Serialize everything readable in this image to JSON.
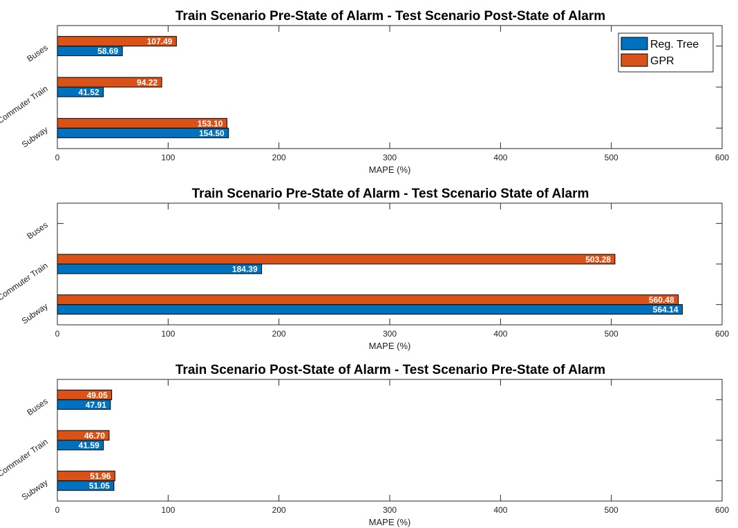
{
  "colors": {
    "reg_tree": "#0072BD",
    "gpr": "#D95319"
  },
  "legend": {
    "items": [
      "Reg. Tree",
      "GPR"
    ],
    "placement": "top-right of first panel"
  },
  "chart_data": [
    {
      "type": "bar",
      "orientation": "horizontal",
      "title": "Train Scenario Pre-State of Alarm - Test Scenario Post-State of Alarm",
      "xlabel": "MAPE (%)",
      "ylabel": "",
      "xlim": [
        0,
        600
      ],
      "xticks": [
        0,
        100,
        200,
        300,
        400,
        500,
        600
      ],
      "categories": [
        "Subway",
        "Commuter Train",
        "Buses"
      ],
      "series": [
        {
          "name": "Reg. Tree",
          "values": [
            154.5,
            41.52,
            58.69
          ],
          "labels": [
            "154.50",
            "41.52",
            "58.69"
          ]
        },
        {
          "name": "GPR",
          "values": [
            153.1,
            94.22,
            107.49
          ],
          "labels": [
            "153.10",
            "94.22",
            "107.49"
          ]
        }
      ]
    },
    {
      "type": "bar",
      "orientation": "horizontal",
      "title": "Train Scenario Pre-State of Alarm - Test Scenario State of Alarm",
      "xlabel": "MAPE (%)",
      "ylabel": "",
      "xlim": [
        0,
        600
      ],
      "xticks": [
        0,
        100,
        200,
        300,
        400,
        500,
        600
      ],
      "categories": [
        "Subway",
        "Commuter Train",
        "Buses"
      ],
      "series": [
        {
          "name": "Reg. Tree",
          "values": [
            564.14,
            184.39,
            null
          ],
          "labels": [
            "564.14",
            "184.39",
            ""
          ]
        },
        {
          "name": "GPR",
          "values": [
            560.48,
            503.28,
            null
          ],
          "labels": [
            "560.48",
            "503.28",
            ""
          ]
        }
      ]
    },
    {
      "type": "bar",
      "orientation": "horizontal",
      "title": "Train Scenario Post-State of Alarm - Test Scenario Pre-State of Alarm",
      "xlabel": "MAPE (%)",
      "ylabel": "",
      "xlim": [
        0,
        600
      ],
      "xticks": [
        0,
        100,
        200,
        300,
        400,
        500,
        600
      ],
      "categories": [
        "Subway",
        "Commuter Train",
        "Buses"
      ],
      "series": [
        {
          "name": "Reg. Tree",
          "values": [
            51.05,
            41.59,
            47.91
          ],
          "labels": [
            "51.05",
            "41.59",
            "47.91"
          ]
        },
        {
          "name": "GPR",
          "values": [
            51.96,
            46.7,
            49.05
          ],
          "labels": [
            "51.96",
            "46.70",
            "49.05"
          ]
        }
      ]
    }
  ]
}
